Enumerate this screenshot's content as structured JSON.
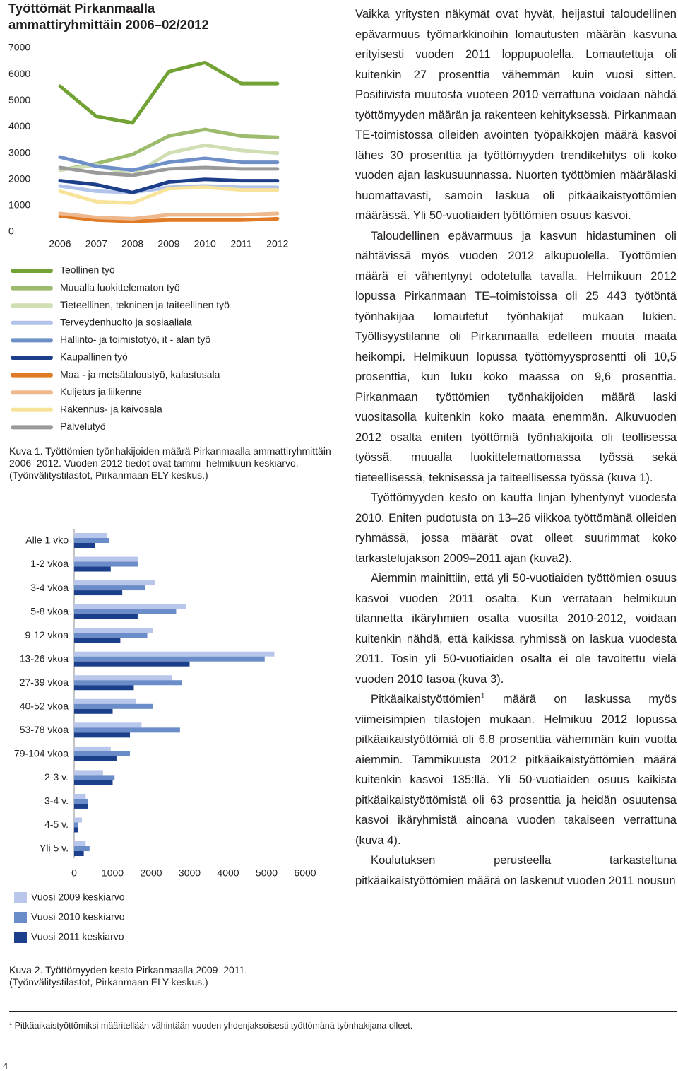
{
  "chart_data": [
    {
      "type": "line",
      "title": "Työttömät Pirkanmaalla ammattiryhmittäin 2006–02/2012",
      "categories": [
        "2006",
        "2007",
        "2008",
        "2009",
        "2010",
        "2011",
        "2012"
      ],
      "ylim": [
        0,
        7000
      ],
      "yticks": [
        0,
        1000,
        2000,
        3000,
        4000,
        5000,
        6000,
        7000
      ],
      "grid": false,
      "series": [
        {
          "name": "Teollinen työ",
          "color": "#72a234",
          "values": [
            5550,
            4400,
            4150,
            6100,
            6450,
            5650,
            5650
          ]
        },
        {
          "name": "Muualla luokittelematon työ",
          "color": "#9cbb6c",
          "values": [
            2350,
            2600,
            2950,
            3650,
            3900,
            3650,
            3600
          ]
        },
        {
          "name": "Tieteellinen, tekninen ja taiteellinen työ",
          "color": "#cfdeb3",
          "values": [
            2350,
            2550,
            2150,
            3000,
            3300,
            3100,
            3000
          ]
        },
        {
          "name": "Terveydenhuolto ja sosiaaliala",
          "color": "#b1c3ea",
          "values": [
            1750,
            1550,
            1500,
            1700,
            1750,
            1700,
            1700
          ]
        },
        {
          "name": "Hallinto- ja toimistotyö, it - alan työ",
          "color": "#6f8fc9",
          "values": [
            2850,
            2500,
            2350,
            2650,
            2800,
            2650,
            2650
          ]
        },
        {
          "name": "Kaupallinen työ",
          "color": "#1d3f8a",
          "values": [
            1950,
            1800,
            1500,
            1900,
            2000,
            1950,
            1950
          ]
        },
        {
          "name": "Maa - ja metsätaloustyö, kalastusala",
          "color": "#e07a24",
          "values": [
            600,
            450,
            400,
            450,
            450,
            450,
            500
          ]
        },
        {
          "name": "Kuljetus ja liikenne",
          "color": "#efb88c",
          "values": [
            700,
            550,
            500,
            650,
            650,
            650,
            700
          ]
        },
        {
          "name": "Rakennus- ja kaivosala",
          "color": "#f8e39a",
          "values": [
            1550,
            1150,
            1100,
            1650,
            1700,
            1600,
            1600
          ]
        },
        {
          "name": "Palvelutyö",
          "color": "#9a9a9a",
          "values": [
            2450,
            2250,
            2150,
            2400,
            2450,
            2400,
            2400
          ]
        }
      ]
    },
    {
      "type": "bar",
      "orientation": "horizontal",
      "categories": [
        "Alle 1 vko",
        "1-2 vkoa",
        "3-4 vkoa",
        "5-8 vkoa",
        "9-12 vkoa",
        "13-26 vkoa",
        "27-39 vkoa",
        "40-52 vkoa",
        "53-78 vkoa",
        "79-104 vkoa",
        "2-3 v.",
        "3-4 v.",
        "4-5 v.",
        "Yli 5 v."
      ],
      "xlim": [
        0,
        6000
      ],
      "xticks": [
        0,
        1000,
        2000,
        3000,
        4000,
        5000,
        6000
      ],
      "series": [
        {
          "name": "Vuosi 2009 keskiarvo",
          "color": "#b7c6ea",
          "values": [
            850,
            1650,
            2100,
            2900,
            2050,
            5200,
            2550,
            1600,
            1750,
            950,
            750,
            300,
            200,
            300
          ]
        },
        {
          "name": "Vuosi 2010 keskiarvo",
          "color": "#6a8cc8",
          "values": [
            900,
            1650,
            1850,
            2650,
            1900,
            4950,
            2800,
            2050,
            2750,
            1450,
            1050,
            350,
            100,
            400
          ]
        },
        {
          "name": "Vuosi 2011 keskiarvo",
          "color": "#1c3f8c",
          "values": [
            550,
            950,
            1250,
            1650,
            1200,
            3000,
            1550,
            1000,
            1450,
            1100,
            1000,
            350,
            100,
            250
          ]
        }
      ]
    }
  ],
  "captions": [
    "Kuva 1. Työttömien työnhakijoiden määrä Pirkanmaalla ammattiryhmittäin 2006–2012. Vuoden 2012 tiedot ovat tammi–helmikuun keskiarvo. (Työnvälitystilastot, Pirkanmaan ELY-keskus.)",
    "Kuva 2. Työttömyyden kesto Pirkanmaalla 2009–2011. (Työnvälitystilastot, Pirkanmaan ELY-keskus.)"
  ],
  "body": {
    "paragraphs": [
      "Vaikka yritysten näkymät ovat hyvät, heijastui taloudellinen epävarmuus työmarkkinoihin lomautusten määrän kasvuna erityisesti vuoden 2011 loppupuolella. Lomautettuja oli kuitenkin 27 prosenttia vähemmän kuin vuosi sitten. Positiivista muutosta vuoteen 2010 verrattuna voidaan nähdä työttömyyden määrän ja rakenteen kehityksessä. Pirkanmaan TE-toimistossa olleiden avointen työpaikkojen määrä kasvoi lähes 30 prosenttia ja työttömyyden trendikehitys oli koko vuoden ajan laskusuunnassa. Nuorten työttömien määrälaski huomattavasti, samoin laskua oli pitkäaikaistyöttömien määrässä. Yli 50-vuotiaiden työttömien osuus kasvoi.",
      "Taloudellinen epävarmuus ja kasvun hidastuminen oli nähtävissä myös vuoden 2012 alkupuolella. Työttömien määrä ei vähentynyt odotetulla tavalla. Helmikuun 2012 lopussa Pirkanmaan TE–toimistoissa oli 25 443 työtöntä työnhakijaa lomautetut työnhakijat mukaan lukien. Työllisyystilanne oli Pirkanmaalla edelleen muuta maata heikompi. Helmikuun lopussa työttömyysprosentti oli 10,5 prosenttia, kun luku koko maassa on 9,6 prosenttia. Pirkanmaan työttömien työnhakijoiden määrä laski vuositasolla kuitenkin koko maata enemmän. Alkuvuoden 2012 osalta eniten työttömiä työnhakijoita oli teollisessa työssä, muualla luokittelemattomassa työssä sekä tieteellisessä, teknisessä ja taiteellisessa työssä (kuva 1).",
      "Työttömyyden kesto on kautta linjan lyhentynyt vuodesta 2010. Eniten pudotusta on 13–26 viikkoa työttömänä olleiden ryhmässä, jossa määrät ovat olleet suurimmat koko tarkastelujakson 2009–2011 ajan (kuva2).",
      "Aiemmin mainittiin, että yli 50-vuotiaiden työttömien osuus kasvoi vuoden 2011 osalta. Kun verrataan helmikuun tilannetta ikäryhmien osalta vuosilta 2010-2012, voidaan kuitenkin nähdä, että kaikissa ryhmissä on laskua vuodesta 2011. Tosin yli 50-vuotiaiden osalta ei ole tavoitettu vielä vuoden 2010 tasoa (kuva 3).",
      [
        "Pitkäaikaistyöttömien",
        "1",
        " määrä on laskussa myös viimeisimpien tilastojen mukaan. Helmikuu 2012 lopussa pitkäaikaistyöttömiä oli 6,8 prosenttia vähemmän kuin vuotta aiemmin. Tammikuusta 2012 pitkäaikaistyöttömien määrä kuitenkin kasvoi 135:llä. Yli 50-vuotiaiden osuus kaikista pitkäaikaistyöttömistä oli 63 prosenttia ja heidän osuutensa kasvoi ikäryhmistä ainoana vuoden takaiseen verrattuna (kuva 4)."
      ],
      "Koulutuksen perusteella tarkasteltuna pitkäaikaistyöttömien määrä on laskenut vuoden 2011 nousun"
    ]
  },
  "footnote": {
    "marker": "1",
    "text": "Pitkäaikaistyöttömiksi määritellään vähintään vuoden yhdenjaksoisesti työttömänä työnhakijana olleet."
  },
  "page_number": "4"
}
